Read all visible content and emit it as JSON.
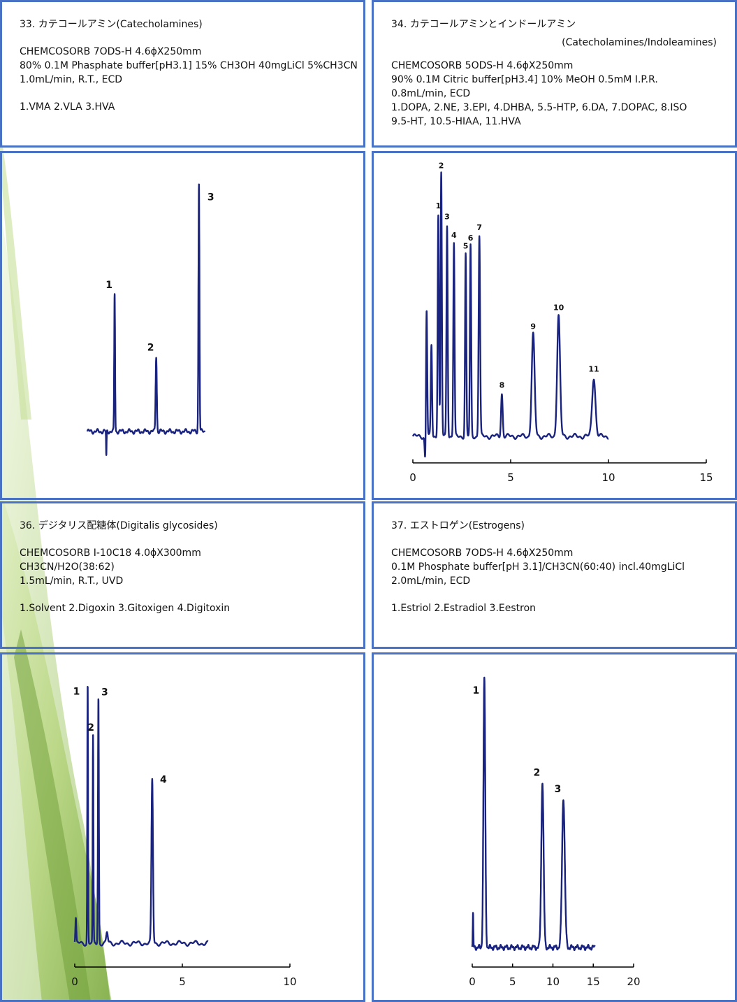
{
  "panels": {
    "p33": {
      "title": "33. カテコールアミン(Catecholamines)",
      "column": "CHEMCOSORB 7ODS-H 4.6ϕX250mm",
      "mobile_phase": "80% 0.1M Phasphate buffer[pH3.1] 15% CH3OH 40mgLiCl 5%CH3CN",
      "conditions": "1.0mL/min, R.T., ECD",
      "peaks": "1.VMA 2.VLA 3.HVA"
    },
    "p34": {
      "title": "34. カテコールアミンとインドールアミン",
      "subtitle": "(Catecholamines/Indoleamines)",
      "column": "CHEMCOSORB 5ODS-H 4.6ϕX250mm",
      "mobile_phase": "90% 0.1M Citric buffer[pH3.4] 10% MeOH 0.5mM I.P.R.",
      "conditions": "0.8mL/min, ECD",
      "peaks_line1": "1.DOPA, 2.NE, 3.EPI, 4.DHBA, 5.5-HTP, 6.DA, 7.DOPAC, 8.ISO",
      "peaks_line2": "9.5-HT, 10.5-HIAA, 11.HVA"
    },
    "p36": {
      "title": "36. デジタリス配糖体(Digitalis glycosides)",
      "column": "CHEMCOSORB I-10C18 4.0ϕX300mm",
      "mobile_phase": "CH3CN/H2O(38:62)",
      "conditions": "1.5mL/min, R.T., UVD",
      "peaks": "1.Solvent 2.Digoxin 3.Gitoxigen 4.Digitoxin"
    },
    "p37": {
      "title": "37. エストロゲン(Estrogens)",
      "column": "CHEMCOSORB 7ODS-H 4.6ϕX250mm",
      "mobile_phase": "0.1M Phosphate buffer[pH 3.1]/CH3CN(60:40) incl.40mgLiCl",
      "conditions": "2.0mL/min, ECD",
      "peaks": "1.Estriol 2.Estradiol 3.Eestron"
    }
  },
  "colors": {
    "border": "#4a72c4",
    "trace": "#1a237e",
    "background_accent": "#a5c85a"
  },
  "chart_data": [
    {
      "id": "c33",
      "type": "line",
      "x_axis_shown": false,
      "xlim": [
        0,
        10
      ],
      "ylim": [
        0,
        100
      ],
      "peaks": [
        {
          "label": "1",
          "x": 2.3,
          "height": 55,
          "width": 0.05
        },
        {
          "label": "2",
          "x": 5.8,
          "height": 30,
          "width": 0.07
        },
        {
          "label": "3",
          "x": 9.4,
          "height": 99,
          "width": 0.06
        }
      ]
    },
    {
      "id": "c34",
      "type": "line",
      "x_axis_shown": true,
      "xlim": [
        0,
        15
      ],
      "xticks": [
        "0",
        "5",
        "10",
        "15"
      ],
      "ylim": [
        0,
        100
      ],
      "peaks": [
        {
          "label": "",
          "x": 0.7,
          "height": 52,
          "width": 0.03
        },
        {
          "label": "",
          "x": 0.95,
          "height": 34,
          "width": 0.03
        },
        {
          "label": "1",
          "x": 1.3,
          "height": 83,
          "width": 0.03
        },
        {
          "label": "2",
          "x": 1.45,
          "height": 98,
          "width": 0.03
        },
        {
          "label": "3",
          "x": 1.75,
          "height": 79,
          "width": 0.03
        },
        {
          "label": "4",
          "x": 2.1,
          "height": 72,
          "width": 0.03
        },
        {
          "label": "5",
          "x": 2.7,
          "height": 68,
          "width": 0.03
        },
        {
          "label": "6",
          "x": 2.95,
          "height": 71,
          "width": 0.03
        },
        {
          "label": "7",
          "x": 3.4,
          "height": 75,
          "width": 0.035
        },
        {
          "label": "8",
          "x": 4.55,
          "height": 16,
          "width": 0.04
        },
        {
          "label": "9",
          "x": 6.15,
          "height": 38,
          "width": 0.07
        },
        {
          "label": "10",
          "x": 7.45,
          "height": 45,
          "width": 0.07
        },
        {
          "label": "11",
          "x": 9.25,
          "height": 22,
          "width": 0.08
        }
      ]
    },
    {
      "id": "c36",
      "type": "line",
      "x_axis_shown": true,
      "xlim": [
        0,
        10
      ],
      "xticks": [
        "0",
        "5",
        "10"
      ],
      "ylim": [
        0,
        100
      ],
      "peaks": [
        {
          "label": "1",
          "x": 0.6,
          "height": 98,
          "width": 0.025
        },
        {
          "label": "2",
          "x": 0.85,
          "height": 78,
          "width": 0.025
        },
        {
          "label": "3",
          "x": 1.1,
          "height": 93,
          "width": 0.03
        },
        {
          "label": "4",
          "x": 3.6,
          "height": 62,
          "width": 0.05
        }
      ]
    },
    {
      "id": "c37",
      "type": "line",
      "x_axis_shown": true,
      "xlim": [
        0,
        20
      ],
      "xticks": [
        "0",
        "5",
        "10",
        "15",
        "20"
      ],
      "ylim": [
        0,
        100
      ],
      "peaks": [
        {
          "label": "1",
          "x": 1.5,
          "height": 99,
          "width": 0.08
        },
        {
          "label": "2",
          "x": 8.7,
          "height": 61,
          "width": 0.1
        },
        {
          "label": "3",
          "x": 11.3,
          "height": 55,
          "width": 0.12
        }
      ]
    }
  ]
}
